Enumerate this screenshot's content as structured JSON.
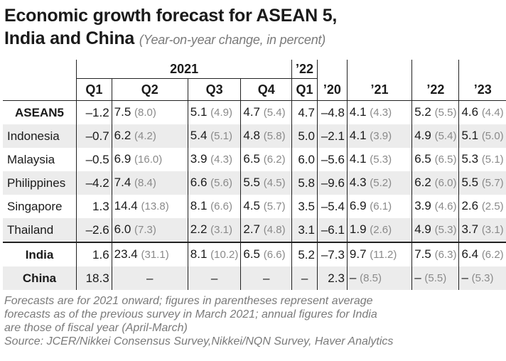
{
  "title": "Economic growth forecast for ASEAN 5,",
  "title_line2": "India and China",
  "subtitle": "(Year-on-year change, in percent)",
  "header": {
    "group_2021": "2021",
    "group_22": "’22",
    "cols": [
      "Q1",
      "Q2",
      "Q3",
      "Q4",
      "Q1",
      "’20",
      "’21",
      "’22",
      "’23"
    ]
  },
  "rows": [
    {
      "name": "ASEAN5",
      "cells": [
        [
          "–1.2",
          ""
        ],
        [
          "7.5",
          "(8.0)"
        ],
        [
          "5.1",
          "(4.9)"
        ],
        [
          "4.7",
          "(5.4)"
        ],
        [
          "4.7",
          ""
        ],
        [
          "–4.8",
          ""
        ],
        [
          "4.1",
          "(4.3)"
        ],
        [
          "5.2",
          "(5.5)"
        ],
        [
          "4.6",
          "(4.4)"
        ]
      ]
    },
    {
      "name": "Indonesia",
      "cells": [
        [
          "–0.7",
          ""
        ],
        [
          "6.2",
          "(4.2)"
        ],
        [
          "5.4",
          "(5.1)"
        ],
        [
          "4.8",
          "(5.8)"
        ],
        [
          "5.0",
          ""
        ],
        [
          "–2.1",
          ""
        ],
        [
          "4.1",
          "(3.9)"
        ],
        [
          "4.9",
          "(5.4)"
        ],
        [
          "5.1",
          "(5.0)"
        ]
      ]
    },
    {
      "name": "Malaysia",
      "cells": [
        [
          "–0.5",
          ""
        ],
        [
          "6.9",
          "(16.0)"
        ],
        [
          "3.9",
          "(4.3)"
        ],
        [
          "6.5",
          "(6.2)"
        ],
        [
          "6.0",
          ""
        ],
        [
          "–5.6",
          ""
        ],
        [
          "4.1",
          "(5.3)"
        ],
        [
          "6.5",
          "(6.5)"
        ],
        [
          "5.3",
          "(5.1)"
        ]
      ]
    },
    {
      "name": "Philippines",
      "cells": [
        [
          "–4.2",
          ""
        ],
        [
          "7.4",
          "(8.4)"
        ],
        [
          "6.6",
          "(5.6)"
        ],
        [
          "5.5",
          "(4.5)"
        ],
        [
          "5.8",
          ""
        ],
        [
          "–9.6",
          ""
        ],
        [
          "4.3",
          "(5.2)"
        ],
        [
          "6.2",
          "(6.0)"
        ],
        [
          "5.5",
          "(5.7)"
        ]
      ]
    },
    {
      "name": "Singapore",
      "cells": [
        [
          "1.3",
          ""
        ],
        [
          "14.4",
          "(13.8)"
        ],
        [
          "8.1",
          "(6.6)"
        ],
        [
          "4.5",
          "(5.7)"
        ],
        [
          "3.5",
          ""
        ],
        [
          "–5.4",
          ""
        ],
        [
          "6.9",
          "(6.1)"
        ],
        [
          "3.9",
          "(4.6)"
        ],
        [
          "2.6",
          "(2.5)"
        ]
      ]
    },
    {
      "name": "Thailand",
      "cells": [
        [
          "–2.6",
          ""
        ],
        [
          "6.0",
          "(7.3)"
        ],
        [
          "2.2",
          "(3.1)"
        ],
        [
          "2.7",
          "(4.8)"
        ],
        [
          "3.1",
          ""
        ],
        [
          "–6.1",
          ""
        ],
        [
          "1.9",
          "(2.6)"
        ],
        [
          "4.9",
          "(5.3)"
        ],
        [
          "3.7",
          "(3.1)"
        ]
      ]
    },
    {
      "name": "India",
      "cells": [
        [
          "1.6",
          ""
        ],
        [
          "23.4",
          "(31.1)"
        ],
        [
          "8.1",
          "(10.2)"
        ],
        [
          "6.5",
          "(6.6)"
        ],
        [
          "5.2",
          ""
        ],
        [
          "–7.3",
          ""
        ],
        [
          "9.7",
          "(11.2)"
        ],
        [
          "7.5",
          "(6.3)"
        ],
        [
          "6.4",
          "(6.2)"
        ]
      ]
    },
    {
      "name": "China",
      "cells": [
        [
          "18.3",
          ""
        ],
        [
          "–",
          ""
        ],
        [
          "–",
          ""
        ],
        [
          "–",
          ""
        ],
        [
          "–",
          ""
        ],
        [
          "2.3",
          ""
        ],
        [
          "–",
          "(8.5)"
        ],
        [
          "–",
          "(5.5)"
        ],
        [
          "–",
          "(5.3)"
        ]
      ]
    }
  ],
  "footer": [
    "Forecasts are for 2021 onward; figures in parentheses represent average",
    "forecasts as of the previous survey in March 2021; annual figures for India",
    "are those of fiscal year (April-March)",
    "Source: JCER/Nikkei Consensus Survey,Nikkei/NQN Survey, Haver Analytics"
  ]
}
